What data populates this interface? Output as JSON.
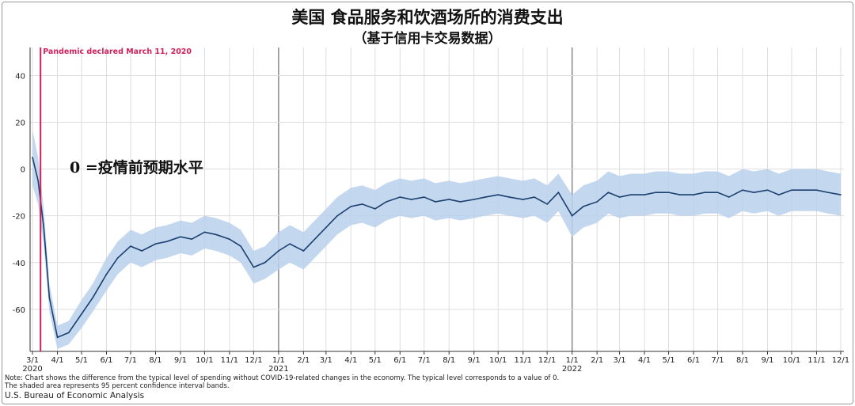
{
  "title": "美国 食品服务和饮酒场所的消费支出",
  "subtitle": "（基于信用卡交易数据）",
  "note_line1": "Note: Chart shows the difference from the typical level of spending without COVID-19-related changes in the economy. The typical level corresponds to a value of 0.",
  "note_line2": "The shaded area represents 95 percent confidence interval bands.",
  "source": "U.S. Bureau of Economic Analysis",
  "chart_data": {
    "type": "line",
    "title": "美国 食品服务和饮酒场所的消费支出",
    "xlabel": "",
    "ylabel": "",
    "xlim": [
      "2020-02-27",
      "2022-12-05"
    ],
    "ylim": [
      -78,
      52
    ],
    "yticks": [
      40,
      20,
      0,
      -20,
      -40,
      -60
    ],
    "xticks": [
      {
        "date": "2020-03-01",
        "label": "3/1",
        "year": "2020"
      },
      {
        "date": "2020-04-01",
        "label": "4/1"
      },
      {
        "date": "2020-05-01",
        "label": "5/1"
      },
      {
        "date": "2020-06-01",
        "label": "6/1"
      },
      {
        "date": "2020-07-01",
        "label": "7/1"
      },
      {
        "date": "2020-08-01",
        "label": "8/1"
      },
      {
        "date": "2020-09-01",
        "label": "9/1"
      },
      {
        "date": "2020-10-01",
        "label": "10/1"
      },
      {
        "date": "2020-11-01",
        "label": "11/1"
      },
      {
        "date": "2020-12-01",
        "label": "12/1"
      },
      {
        "date": "2021-01-01",
        "label": "1/1",
        "year": "2021"
      },
      {
        "date": "2021-02-01",
        "label": "2/1"
      },
      {
        "date": "2021-03-01",
        "label": "3/1"
      },
      {
        "date": "2021-04-01",
        "label": "4/1"
      },
      {
        "date": "2021-05-01",
        "label": "5/1"
      },
      {
        "date": "2021-06-01",
        "label": "6/1"
      },
      {
        "date": "2021-07-01",
        "label": "7/1"
      },
      {
        "date": "2021-08-01",
        "label": "8/1"
      },
      {
        "date": "2021-09-01",
        "label": "9/1"
      },
      {
        "date": "2021-10-01",
        "label": "10/1"
      },
      {
        "date": "2021-11-01",
        "label": "11/1"
      },
      {
        "date": "2021-12-01",
        "label": "12/1"
      },
      {
        "date": "2022-01-01",
        "label": "1/1",
        "year": "2022"
      },
      {
        "date": "2022-02-01",
        "label": "2/1"
      },
      {
        "date": "2022-03-01",
        "label": "3/1"
      },
      {
        "date": "2022-04-01",
        "label": "4/1"
      },
      {
        "date": "2022-05-01",
        "label": "5/1"
      },
      {
        "date": "2022-06-01",
        "label": "6/1"
      },
      {
        "date": "2022-07-01",
        "label": "7/1"
      },
      {
        "date": "2022-08-01",
        "label": "8/1"
      },
      {
        "date": "2022-09-01",
        "label": "9/1"
      },
      {
        "date": "2022-10-01",
        "label": "10/1"
      },
      {
        "date": "2022-11-01",
        "label": "11/1"
      },
      {
        "date": "2022-12-01",
        "label": "12/1"
      }
    ],
    "grid": true,
    "annotations": [
      {
        "text": "Pandemic declared March 11, 2020",
        "date": "2020-03-11",
        "color": "#d0205a"
      },
      {
        "text": "0 =疫情前预期水平"
      }
    ],
    "colors": {
      "line": "#1b3f6e",
      "band": "#b8d0ec",
      "event": "#d0205a"
    },
    "series": [
      {
        "dates": [
          "2020-03-01",
          "2020-03-08",
          "2020-03-15",
          "2020-03-22",
          "2020-04-01",
          "2020-04-15",
          "2020-05-01",
          "2020-05-15",
          "2020-06-01",
          "2020-06-15",
          "2020-07-01",
          "2020-07-15",
          "2020-08-01",
          "2020-08-15",
          "2020-09-01",
          "2020-09-15",
          "2020-10-01",
          "2020-10-15",
          "2020-11-01",
          "2020-11-15",
          "2020-12-01",
          "2020-12-15",
          "2021-01-01",
          "2021-01-15",
          "2021-02-01",
          "2021-02-15",
          "2021-03-01",
          "2021-03-15",
          "2021-04-01",
          "2021-04-15",
          "2021-05-01",
          "2021-05-15",
          "2021-06-01",
          "2021-06-15",
          "2021-07-01",
          "2021-07-15",
          "2021-08-01",
          "2021-08-15",
          "2021-09-01",
          "2021-09-15",
          "2021-10-01",
          "2021-10-15",
          "2021-11-01",
          "2021-11-15",
          "2021-12-01",
          "2021-12-15",
          "2022-01-01",
          "2022-01-15",
          "2022-02-01",
          "2022-02-15",
          "2022-03-01",
          "2022-03-15",
          "2022-04-01",
          "2022-04-15",
          "2022-05-01",
          "2022-05-15",
          "2022-06-01",
          "2022-06-15",
          "2022-07-01",
          "2022-07-15",
          "2022-08-01",
          "2022-08-15",
          "2022-09-01",
          "2022-09-15",
          "2022-10-01",
          "2022-10-15",
          "2022-11-01",
          "2022-11-15",
          "2022-12-01"
        ],
        "values": [
          5,
          -5,
          -25,
          -55,
          -72,
          -70,
          -62,
          -55,
          -45,
          -38,
          -33,
          -35,
          -32,
          -31,
          -29,
          -30,
          -27,
          -28,
          -30,
          -33,
          -42,
          -40,
          -35,
          -32,
          -35,
          -30,
          -25,
          -20,
          -16,
          -15,
          -17,
          -14,
          -12,
          -13,
          -12,
          -14,
          -13,
          -14,
          -13,
          -12,
          -11,
          -12,
          -13,
          -12,
          -15,
          -10,
          -20,
          -16,
          -14,
          -10,
          -12,
          -11,
          -11,
          -10,
          -10,
          -11,
          -11,
          -10,
          -10,
          -12,
          -9,
          -10,
          -9,
          -11,
          -9,
          -9,
          -9,
          -10,
          -11
        ],
        "ci_halfwidth": [
          12,
          10,
          8,
          6,
          5,
          5,
          6,
          6,
          7,
          7,
          7,
          7,
          7,
          7,
          7,
          7,
          7,
          7,
          7,
          7,
          7,
          7,
          8,
          8,
          8,
          8,
          8,
          8,
          8,
          8,
          8,
          8,
          8,
          8,
          8,
          8,
          8,
          8,
          8,
          8,
          8,
          8,
          8,
          8,
          8,
          8,
          9,
          9,
          9,
          9,
          9,
          9,
          9,
          9,
          9,
          9,
          9,
          9,
          9,
          9,
          9,
          9,
          9,
          9,
          9,
          9,
          9,
          9,
          9
        ]
      }
    ]
  }
}
